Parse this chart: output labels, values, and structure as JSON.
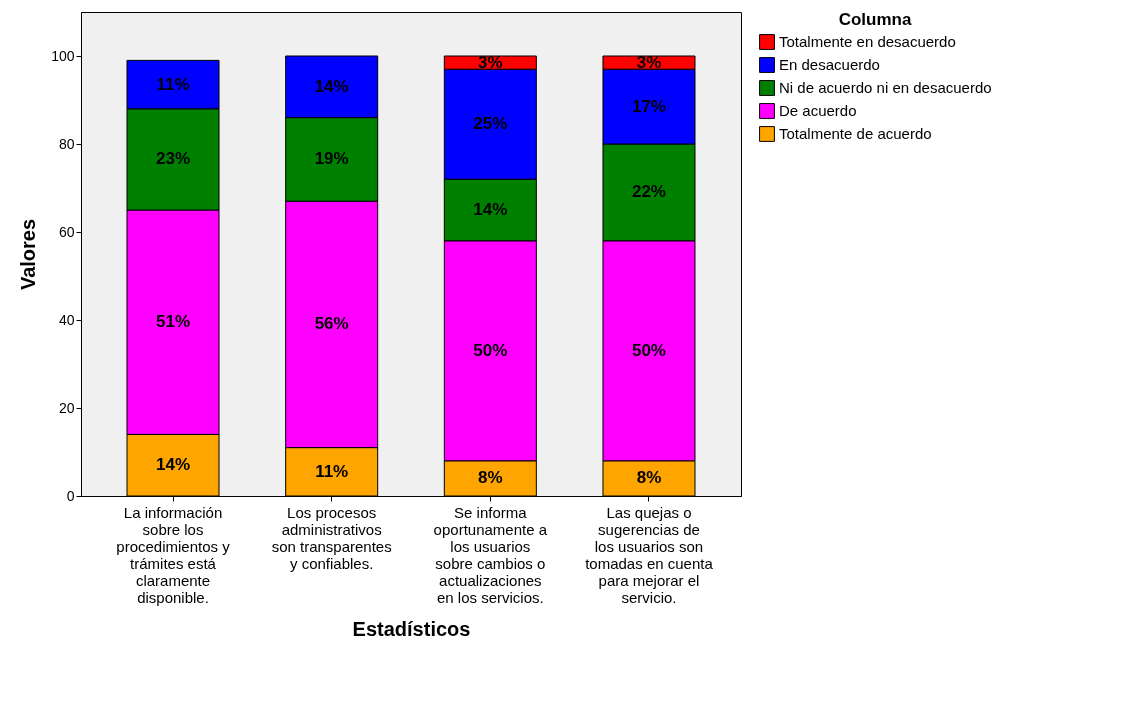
{
  "chart_data": {
    "type": "bar",
    "stacked": true,
    "xlabel": "Estadísticos",
    "ylabel": "Valores",
    "legend_title": "Columna",
    "legend": "top right",
    "grid": false,
    "categories": [
      "La información sobre los procedimientos y trámites está claramente disponible.",
      "Los procesos administrativos son transparentes y confiables.",
      "Se informa oportunamente a los usuarios sobre cambios o actualizaciones en los servicios.",
      "Las quejas o sugerencias de los usuarios son tomadas en cuenta para mejorar el servicio."
    ],
    "ylim": [
      0,
      110
    ],
    "yticks": [
      0,
      20,
      40,
      60,
      80,
      100
    ],
    "series": [
      {
        "name": "Totalmente de acuerdo",
        "color": "#ffa500",
        "values": [
          14,
          11,
          8,
          8
        ],
        "value_labels": [
          "14%",
          "11%",
          "8%",
          "8%"
        ]
      },
      {
        "name": "De acuerdo",
        "color": "#ff00ff",
        "values": [
          51,
          56,
          50,
          50
        ],
        "value_labels": [
          "51%",
          "56%",
          "50%",
          "50%"
        ]
      },
      {
        "name": "Ni de acuerdo ni en desacuerdo",
        "color": "#008000",
        "values": [
          23,
          19,
          14,
          22
        ],
        "value_labels": [
          "23%",
          "19%",
          "14%",
          "22%"
        ]
      },
      {
        "name": "En desacuerdo",
        "color": "#0000ff",
        "values": [
          11,
          14,
          25,
          17
        ],
        "value_labels": [
          "11%",
          "14%",
          "25%",
          "17%"
        ]
      },
      {
        "name": "Totalmente en desacuerdo",
        "color": "#ff0000",
        "values": [
          null,
          null,
          3,
          3
        ],
        "value_labels": [
          null,
          null,
          "3%",
          "3%"
        ]
      }
    ]
  }
}
